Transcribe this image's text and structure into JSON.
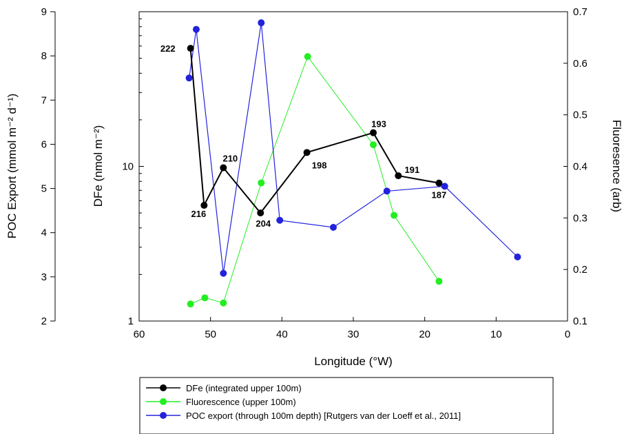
{
  "chart_data": {
    "type": "line",
    "x_axis": {
      "label": "Longitude (°W)",
      "range": [
        60,
        0
      ],
      "ticks": [
        60,
        50,
        40,
        30,
        20,
        10,
        0
      ],
      "tick_labels": [
        "60",
        "50",
        "40",
        "30",
        "20",
        "10",
        "0"
      ]
    },
    "y_axes": {
      "poc": {
        "label": "POC Export (mmol m⁻² d⁻¹)",
        "range": [
          2,
          9
        ],
        "ticks": [
          2,
          3,
          4,
          5,
          6,
          7,
          8,
          9
        ],
        "tick_labels": [
          "2",
          "3",
          "4",
          "5",
          "6",
          "7",
          "8",
          "9"
        ]
      },
      "dfe": {
        "label": "DFe (nmol m⁻²)",
        "scale": "log",
        "range": [
          1,
          100
        ],
        "ticks": [
          1,
          10
        ],
        "tick_labels": [
          "1",
          "10"
        ]
      },
      "fluor": {
        "label": "Fluoresence (arb)",
        "range": [
          0.1,
          0.7
        ],
        "ticks": [
          0.1,
          0.2,
          0.3,
          0.4,
          0.5,
          0.6,
          0.7
        ],
        "tick_labels": [
          "0.1",
          "0.2",
          "0.3",
          "0.4",
          "0.5",
          "0.6",
          "0.7"
        ]
      }
    },
    "series": [
      {
        "key": "dfe",
        "axis": "dfe",
        "color": "#000000",
        "line_width": 2,
        "x": [
          52.8,
          50.9,
          48.2,
          43.0,
          36.5,
          27.2,
          23.7,
          18.0
        ],
        "y": [
          58,
          5.6,
          9.8,
          5.0,
          12.3,
          16.5,
          8.7,
          7.8
        ],
        "labels": [
          "222",
          "216",
          "210",
          "204",
          "198",
          "193",
          "191",
          "187"
        ]
      },
      {
        "key": "fluor",
        "axis": "fluor",
        "color": "#22ee22",
        "line_width": 1,
        "x": [
          52.8,
          50.8,
          48.2,
          42.9,
          36.4,
          27.2,
          24.3,
          18.0
        ],
        "y": [
          0.133,
          0.145,
          0.135,
          0.368,
          0.613,
          0.442,
          0.305,
          0.177
        ],
        "labels": []
      },
      {
        "key": "poc",
        "axis": "poc",
        "color": "#2222dd",
        "line_width": 1.2,
        "x": [
          53.0,
          52.0,
          48.2,
          42.9,
          40.3,
          32.8,
          25.3,
          17.2,
          7.0
        ],
        "y": [
          7.5,
          8.6,
          3.08,
          8.75,
          4.28,
          4.12,
          4.94,
          5.05,
          3.45
        ],
        "labels": []
      }
    ],
    "legend": {
      "position": "bottom",
      "entries": [
        {
          "name": "DFe (integrated upper 100m)",
          "color": "#000000"
        },
        {
          "name": "Fluorescence (upper 100m)",
          "color": "#22ee22"
        },
        {
          "name": "POC export (through 100m depth) [Rutgers van der Loeff et al., 2011]",
          "color": "#2222dd"
        }
      ]
    }
  }
}
